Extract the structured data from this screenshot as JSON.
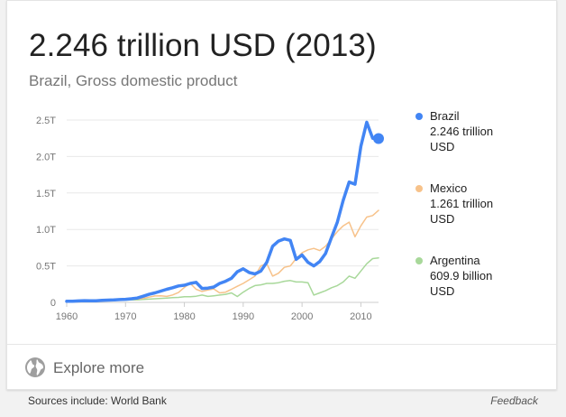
{
  "card": {
    "headline": "2.246 trillion USD (2013)",
    "subtitle": "Brazil, Gross domestic product",
    "explore_label": "Explore more"
  },
  "footer": {
    "sources": "Sources include: World Bank",
    "feedback": "Feedback"
  },
  "colors": {
    "brazil": "#4285f4",
    "mexico": "#f7c28a",
    "argentina": "#a8d89a",
    "grid": "#e8e8e8",
    "axis": "#cccccc"
  },
  "chart_data": {
    "type": "line",
    "title": "2.246 trillion USD (2013)",
    "subtitle": "Brazil, Gross domestic product",
    "xlim": [
      1960,
      2013
    ],
    "ylim": [
      0,
      2.5
    ],
    "x_ticks": [
      1960,
      1970,
      1980,
      1990,
      2000,
      2010
    ],
    "x_tick_labels": [
      "1960",
      "1970",
      "1980",
      "1990",
      "2000",
      "2010"
    ],
    "y_ticks": [
      0,
      0.5,
      1.0,
      1.5,
      2.0,
      2.5
    ],
    "y_tick_labels": [
      "0",
      "0.5T",
      "1.0T",
      "1.5T",
      "2.0T",
      "2.5T"
    ],
    "grid": true,
    "legend_position": "right",
    "years": [
      1960,
      1961,
      1962,
      1963,
      1964,
      1965,
      1966,
      1967,
      1968,
      1969,
      1970,
      1971,
      1972,
      1973,
      1974,
      1975,
      1976,
      1977,
      1978,
      1979,
      1980,
      1981,
      1982,
      1983,
      1984,
      1985,
      1986,
      1987,
      1988,
      1989,
      1990,
      1991,
      1992,
      1993,
      1994,
      1995,
      1996,
      1997,
      1998,
      1999,
      2000,
      2001,
      2002,
      2003,
      2004,
      2005,
      2006,
      2007,
      2008,
      2009,
      2010,
      2011,
      2012,
      2013
    ],
    "series": [
      {
        "name": "Brazil",
        "value_label": "2.246 trillion",
        "unit_label": "USD",
        "color": "#4285f4",
        "values": [
          0.015,
          0.016,
          0.02,
          0.023,
          0.021,
          0.022,
          0.028,
          0.031,
          0.034,
          0.038,
          0.042,
          0.05,
          0.06,
          0.084,
          0.11,
          0.13,
          0.155,
          0.18,
          0.2,
          0.225,
          0.235,
          0.26,
          0.275,
          0.19,
          0.195,
          0.21,
          0.26,
          0.29,
          0.33,
          0.42,
          0.46,
          0.41,
          0.39,
          0.43,
          0.55,
          0.77,
          0.84,
          0.87,
          0.85,
          0.59,
          0.65,
          0.55,
          0.5,
          0.56,
          0.67,
          0.89,
          1.1,
          1.4,
          1.65,
          1.62,
          2.14,
          2.47,
          2.25,
          2.246
        ]
      },
      {
        "name": "Mexico",
        "value_label": "1.261 trillion",
        "unit_label": "USD",
        "color": "#f7c28a",
        "values": [
          0.013,
          0.014,
          0.015,
          0.016,
          0.019,
          0.021,
          0.023,
          0.025,
          0.027,
          0.03,
          0.035,
          0.039,
          0.045,
          0.055,
          0.072,
          0.088,
          0.089,
          0.082,
          0.102,
          0.135,
          0.205,
          0.26,
          0.18,
          0.15,
          0.17,
          0.185,
          0.13,
          0.14,
          0.18,
          0.22,
          0.26,
          0.31,
          0.36,
          0.5,
          0.53,
          0.36,
          0.4,
          0.48,
          0.5,
          0.6,
          0.68,
          0.72,
          0.74,
          0.71,
          0.77,
          0.87,
          0.97,
          1.05,
          1.1,
          0.9,
          1.05,
          1.17,
          1.19,
          1.261
        ]
      },
      {
        "name": "Argentina",
        "value_label": "609.9 billion",
        "unit_label": "USD",
        "color": "#a8d89a",
        "values": [
          0.015,
          0.016,
          0.017,
          0.017,
          0.019,
          0.021,
          0.022,
          0.025,
          0.026,
          0.03,
          0.031,
          0.033,
          0.035,
          0.04,
          0.045,
          0.05,
          0.055,
          0.06,
          0.065,
          0.068,
          0.077,
          0.078,
          0.084,
          0.1,
          0.082,
          0.09,
          0.1,
          0.11,
          0.13,
          0.08,
          0.14,
          0.19,
          0.23,
          0.24,
          0.26,
          0.26,
          0.27,
          0.29,
          0.3,
          0.28,
          0.28,
          0.27,
          0.1,
          0.13,
          0.16,
          0.2,
          0.23,
          0.28,
          0.36,
          0.33,
          0.43,
          0.53,
          0.6,
          0.6099
        ]
      }
    ]
  }
}
